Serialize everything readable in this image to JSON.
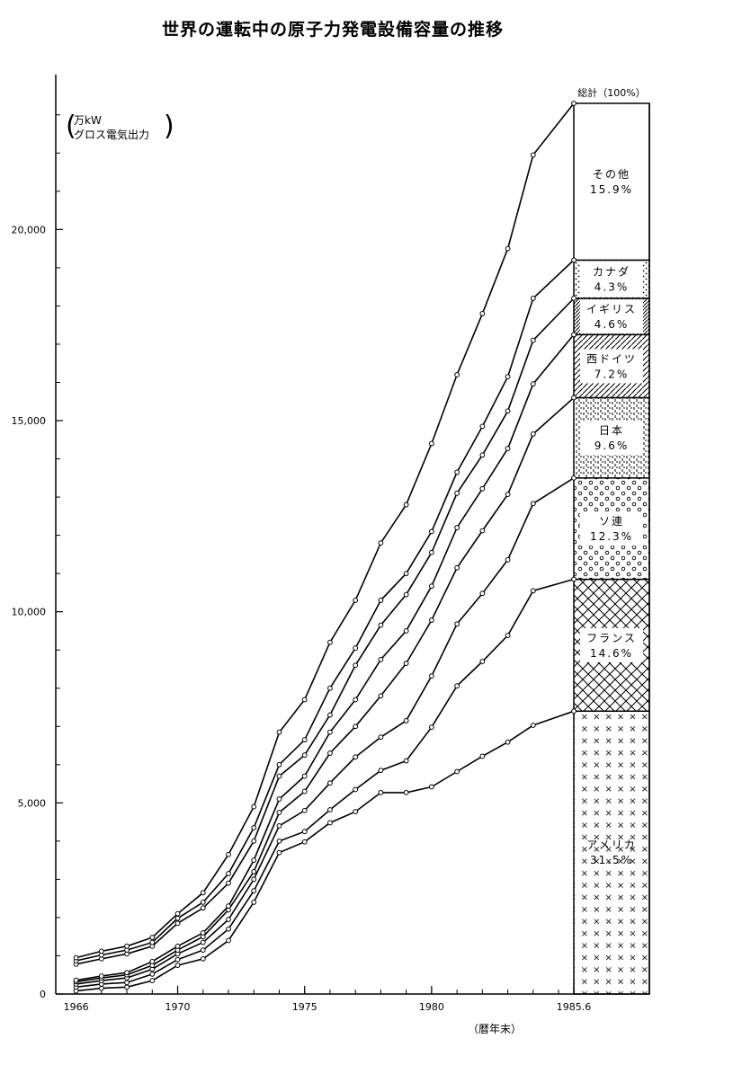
{
  "chart_data": {
    "type": "line",
    "title": "世界の運転中の原子力発電設備容量の推移",
    "ylabel": "万kW\nグロス電気出力",
    "xlabel": "（暦年末）",
    "ylim": [
      0,
      23300
    ],
    "xlim": [
      1965.2,
      1985.6
    ],
    "y_ticks": [
      0,
      5000,
      10000,
      15000,
      20000
    ],
    "y_tick_labels": [
      "0",
      "5,000",
      "10,000",
      "15,000",
      "20,000"
    ],
    "x_ticks": [
      1966,
      1970,
      1975,
      1980,
      1985.6
    ],
    "x_tick_labels": [
      "1966",
      "1970",
      "1975",
      "1980",
      "1985.6"
    ],
    "x": [
      1966,
      1967,
      1968,
      1969,
      1970,
      1971,
      1972,
      1973,
      1974,
      1975,
      1976,
      1977,
      1978,
      1979,
      1980,
      1981,
      1982,
      1983,
      1984,
      1985.6
    ],
    "series": [
      {
        "name": "アメリカ",
        "values": [
          80,
          150,
          180,
          350,
          750,
          920,
          1400,
          2400,
          3700,
          3980,
          4480,
          4770,
          5270,
          5270,
          5420,
          5820,
          6220,
          6590,
          7030,
          7400
        ]
      },
      {
        "name": "フランス",
        "values": [
          180,
          260,
          300,
          520,
          900,
          1150,
          1700,
          2700,
          4000,
          4250,
          4820,
          5350,
          5850,
          6100,
          6980,
          8060,
          8700,
          9380,
          10550,
          10850
        ]
      },
      {
        "name": "ソ連",
        "values": [
          260,
          350,
          420,
          650,
          1050,
          1350,
          1950,
          3000,
          4400,
          4800,
          5520,
          6200,
          6720,
          7150,
          8320,
          9680,
          10480,
          11360,
          12830,
          13500
        ]
      },
      {
        "name": "日本",
        "values": [
          320,
          420,
          500,
          750,
          1150,
          1500,
          2200,
          3200,
          4750,
          5300,
          6300,
          7000,
          7800,
          8650,
          9780,
          11150,
          12120,
          13070,
          14650,
          15600
        ]
      },
      {
        "name": "西ドイツ",
        "values": [
          360,
          470,
          560,
          850,
          1250,
          1600,
          2300,
          3500,
          5100,
          5700,
          6850,
          7700,
          8750,
          9500,
          10670,
          12200,
          13220,
          14270,
          15960,
          17250
        ]
      },
      {
        "name": "イギリス",
        "values": [
          780,
          920,
          1050,
          1250,
          1850,
          2250,
          2900,
          4000,
          5700,
          6250,
          7300,
          8600,
          9650,
          10450,
          11550,
          13100,
          14100,
          15250,
          17100,
          18200
        ]
      },
      {
        "name": "カナダ",
        "values": [
          870,
          1020,
          1150,
          1350,
          1980,
          2400,
          3150,
          4350,
          6000,
          6650,
          8000,
          9050,
          10300,
          11000,
          12100,
          13650,
          14850,
          16150,
          18200,
          19200
        ]
      },
      {
        "name": "総計",
        "values": [
          950,
          1120,
          1250,
          1480,
          2100,
          2650,
          3650,
          4900,
          6850,
          7700,
          9200,
          10300,
          11800,
          12800,
          14400,
          16200,
          17800,
          19500,
          21950,
          23300
        ]
      }
    ],
    "stacked_bar": {
      "header": "総計（100%）",
      "segments": [
        {
          "name": "アメリカ",
          "percent_label": "31.5%",
          "from": 0,
          "to": 7400,
          "pattern": "cross"
        },
        {
          "name": "フランス",
          "percent_label": "14.6%",
          "from": 7400,
          "to": 10850,
          "pattern": "crosshatch"
        },
        {
          "name": "ソ連",
          "percent_label": "12.3%",
          "from": 10850,
          "to": 13500,
          "pattern": "circles"
        },
        {
          "name": "日本",
          "percent_label": "9.6%",
          "from": 13500,
          "to": 15600,
          "pattern": "dashes"
        },
        {
          "name": "西ドイツ",
          "percent_label": "7.2%",
          "from": 15600,
          "to": 17250,
          "pattern": "diagonal"
        },
        {
          "name": "イギリス",
          "percent_label": "4.6%",
          "from": 17250,
          "to": 18200,
          "pattern": "diagonal-dense"
        },
        {
          "name": "カナダ",
          "percent_label": "4.3%",
          "from": 18200,
          "to": 19200,
          "pattern": "dots"
        },
        {
          "name": "その他",
          "percent_label": "15.9%",
          "from": 19200,
          "to": 23300,
          "pattern": "none"
        }
      ]
    }
  }
}
